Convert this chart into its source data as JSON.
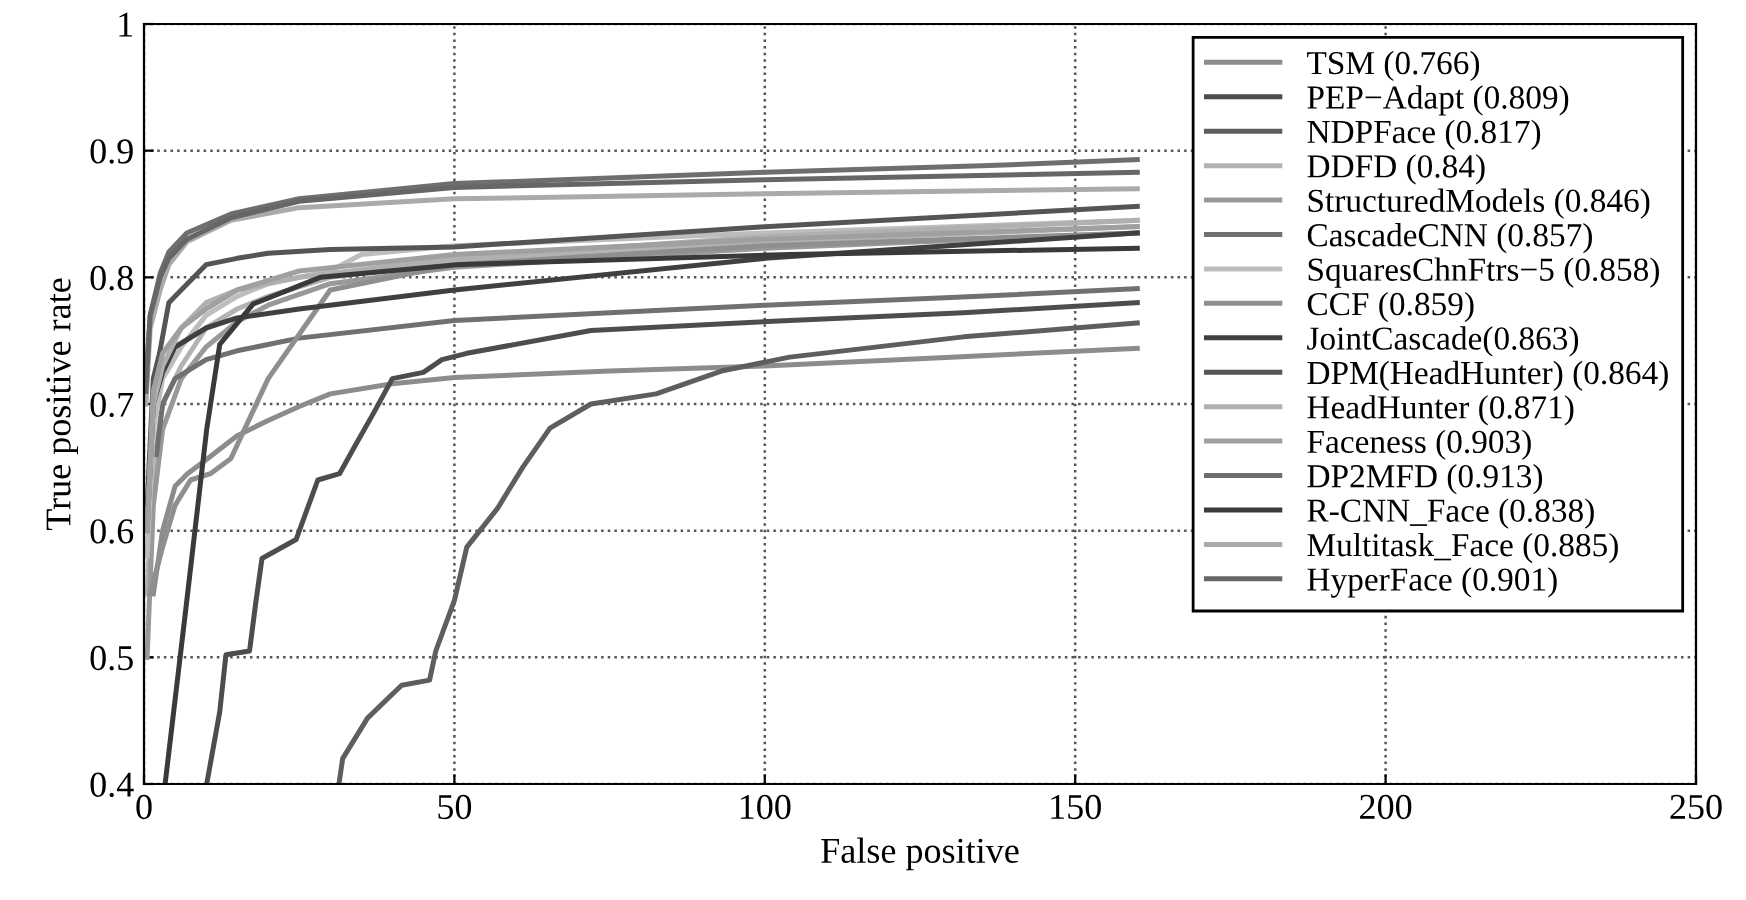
{
  "chart_data": {
    "type": "line",
    "xlabel": "False positive",
    "ylabel": "True positive rate",
    "xlim": [
      0,
      250
    ],
    "ylim": [
      0.4,
      1
    ],
    "xticks": [
      0,
      50,
      100,
      150,
      200,
      250
    ],
    "yticks": [
      0.4,
      0.5,
      0.6,
      0.7,
      0.8,
      0.9,
      {
        "value": 1,
        "label": "1"
      }
    ],
    "grid": true,
    "legend": "top right",
    "line_style": "solid",
    "marker": "none",
    "series": [
      {
        "name": "TSM (0.766)",
        "color": "#8c8c8c",
        "x": [
          1.5,
          3,
          5,
          7,
          10,
          15,
          20,
          25,
          30,
          40,
          50,
          75,
          100,
          130,
          160
        ],
        "values": [
          0.55,
          0.6,
          0.635,
          0.645,
          0.656,
          0.675,
          0.687,
          0.698,
          0.708,
          0.716,
          0.721,
          0.726,
          0.73,
          0.737,
          0.744
        ]
      },
      {
        "name": "PEP−Adapt (0.809)",
        "color": "#4d4d4d",
        "x": [
          10.1,
          12.2,
          13.2,
          17,
          18,
          19,
          24.5,
          28,
          31.5,
          34,
          37,
          40,
          45,
          48,
          52,
          72,
          104,
          132,
          160
        ],
        "values": [
          0.4,
          0.457,
          0.502,
          0.505,
          0.543,
          0.578,
          0.593,
          0.64,
          0.645,
          0.667,
          0.693,
          0.72,
          0.725,
          0.735,
          0.74,
          0.758,
          0.766,
          0.772,
          0.78
        ]
      },
      {
        "name": "NDPFace (0.817)",
        "color": "#5e5e5e",
        "x": [
          31.4,
          32,
          36,
          41.5,
          46,
          47,
          50,
          52,
          57,
          61,
          65.4,
          72,
          82.5,
          93,
          104,
          132,
          160
        ],
        "values": [
          0.4,
          0.42,
          0.452,
          0.478,
          0.482,
          0.505,
          0.545,
          0.587,
          0.618,
          0.65,
          0.681,
          0.7,
          0.708,
          0.726,
          0.737,
          0.753,
          0.764
        ]
      },
      {
        "name": "DDFD (0.84)",
        "color": "#b3b3b3",
        "x": [
          0.5,
          1.5,
          3,
          6,
          10,
          15,
          20,
          30,
          50,
          100,
          160
        ],
        "values": [
          0.55,
          0.65,
          0.7,
          0.73,
          0.76,
          0.775,
          0.785,
          0.8,
          0.812,
          0.828,
          0.84
        ]
      },
      {
        "name": "StructuredModels (0.846)",
        "color": "#999999",
        "x": [
          0.5,
          1.5,
          3,
          6,
          10,
          15,
          20,
          30,
          50,
          100,
          160
        ],
        "values": [
          0.5,
          0.62,
          0.68,
          0.72,
          0.745,
          0.765,
          0.778,
          0.795,
          0.808,
          0.823,
          0.835
        ]
      },
      {
        "name": "CascadeCNN (0.857)",
        "color": "#707070",
        "x": [
          2,
          3,
          5,
          10,
          15,
          25,
          50,
          75,
          100,
          130,
          160
        ],
        "values": [
          0.66,
          0.7,
          0.72,
          0.735,
          0.742,
          0.752,
          0.766,
          0.772,
          0.778,
          0.784,
          0.791
        ]
      },
      {
        "name": "SquaresChnFtrs−5 (0.858)",
        "color": "#bdbdbd",
        "x": [
          0.5,
          1.5,
          3,
          6,
          10,
          15,
          20,
          30,
          35,
          50,
          100,
          160
        ],
        "values": [
          0.58,
          0.68,
          0.72,
          0.745,
          0.77,
          0.785,
          0.795,
          0.805,
          0.818,
          0.825,
          0.835,
          0.845
        ]
      },
      {
        "name": "CCF (0.859)",
        "color": "#8f8f8f",
        "x": [
          1,
          3,
          5,
          7.5,
          10.7,
          14,
          20,
          30,
          50,
          100,
          160
        ],
        "values": [
          0.55,
          0.587,
          0.62,
          0.64,
          0.645,
          0.657,
          0.72,
          0.79,
          0.81,
          0.825,
          0.835
        ]
      },
      {
        "name": "JointCascade(0.863)",
        "color": "#404040",
        "x": [
          0.5,
          1.5,
          3,
          5,
          10,
          15,
          25,
          50,
          100,
          160
        ],
        "values": [
          0.6,
          0.7,
          0.725,
          0.745,
          0.76,
          0.768,
          0.775,
          0.79,
          0.815,
          0.835
        ]
      },
      {
        "name": "DPM(HeadHunter) (0.864)",
        "color": "#555555",
        "x": [
          0.5,
          1.5,
          2.5,
          4,
          6,
          10,
          15,
          20,
          30,
          50,
          100,
          160
        ],
        "values": [
          0.62,
          0.72,
          0.74,
          0.78,
          0.79,
          0.81,
          0.815,
          0.819,
          0.822,
          0.824,
          0.84,
          0.856
        ]
      },
      {
        "name": "HeadHunter (0.871)",
        "color": "#b0b0b0",
        "x": [
          0.5,
          1.5,
          3,
          6,
          10,
          15,
          25,
          50,
          100,
          160
        ],
        "values": [
          0.6,
          0.7,
          0.73,
          0.76,
          0.78,
          0.79,
          0.8,
          0.815,
          0.832,
          0.845
        ]
      },
      {
        "name": "Faceness (0.903)",
        "color": "#a0a0a0",
        "x": [
          0.5,
          1.5,
          3,
          6,
          10,
          15,
          25,
          50,
          100,
          160
        ],
        "values": [
          0.6,
          0.71,
          0.74,
          0.76,
          0.775,
          0.79,
          0.805,
          0.818,
          0.83,
          0.84
        ]
      },
      {
        "name": "DP2MFD (0.913)",
        "color": "#6e6e6e",
        "x": [
          0.3,
          1,
          2.6,
          4,
          6.9,
          14,
          25,
          50,
          100,
          135,
          160
        ],
        "values": [
          0.72,
          0.77,
          0.803,
          0.82,
          0.835,
          0.85,
          0.862,
          0.874,
          0.883,
          0.888,
          0.893
        ]
      },
      {
        "name": "R-CNN_Face (0.838)",
        "color": "#3a3a3a",
        "x": [
          3.4,
          6.9,
          10.1,
          12.2,
          17.6,
          28.4,
          50.4,
          104,
          160
        ],
        "values": [
          0.4,
          0.545,
          0.68,
          0.747,
          0.779,
          0.8,
          0.81,
          0.818,
          0.823
        ]
      },
      {
        "name": "Multitask_Face (0.885)",
        "color": "#aaaaaa",
        "x": [
          0.3,
          1,
          2.6,
          4,
          6.9,
          14,
          25,
          50,
          100,
          160
        ],
        "values": [
          0.7,
          0.76,
          0.79,
          0.81,
          0.828,
          0.845,
          0.855,
          0.862,
          0.866,
          0.87
        ]
      },
      {
        "name": "HyperFace (0.901)",
        "color": "#666666",
        "x": [
          0.3,
          1,
          2.6,
          4,
          6.9,
          14,
          25,
          50,
          100,
          160
        ],
        "values": [
          0.71,
          0.77,
          0.8,
          0.815,
          0.83,
          0.847,
          0.86,
          0.871,
          0.877,
          0.883
        ]
      }
    ]
  }
}
